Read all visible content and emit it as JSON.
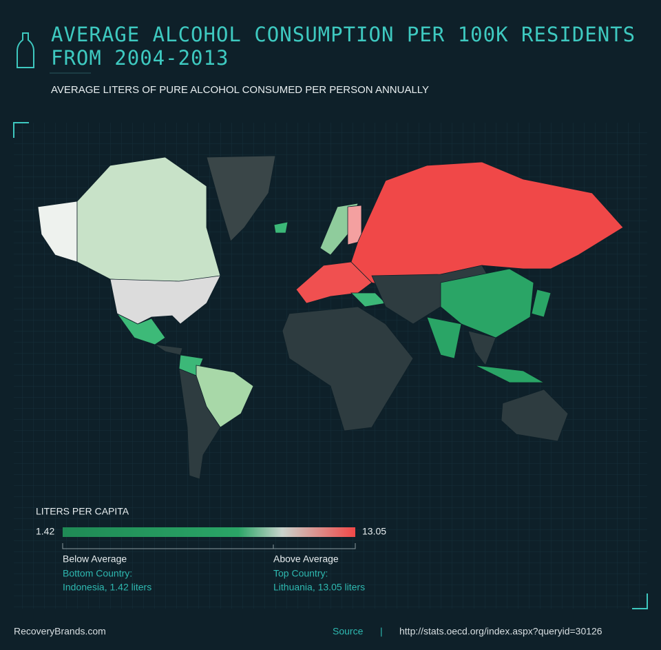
{
  "header": {
    "title_lines": [
      "AVERAGE ALCOHOL CONSUMPTION PER 100K RESIDENTS",
      "FROM 2004-2013"
    ],
    "subtitle": "AVERAGE LITERS OF PURE ALCOHOL CONSUMED PER PERSON ANNUALLY"
  },
  "legend": {
    "title": "LITERS PER CAPITA",
    "min": 1.42,
    "max": 13.05,
    "below": "Below Average",
    "above": "Above Average",
    "bottom_label": "Bottom Country:",
    "bottom_country": "Indonesia, 1.42 liters",
    "top_label": "Top Country:",
    "top_country": "Lithuania, 13.05 liters"
  },
  "footer": {
    "brand": "RecoveryBrands.com",
    "source": "Source",
    "separator": "|",
    "url": "http://stats.oecd.org/index.aspx?queryid=30126"
  }
}
